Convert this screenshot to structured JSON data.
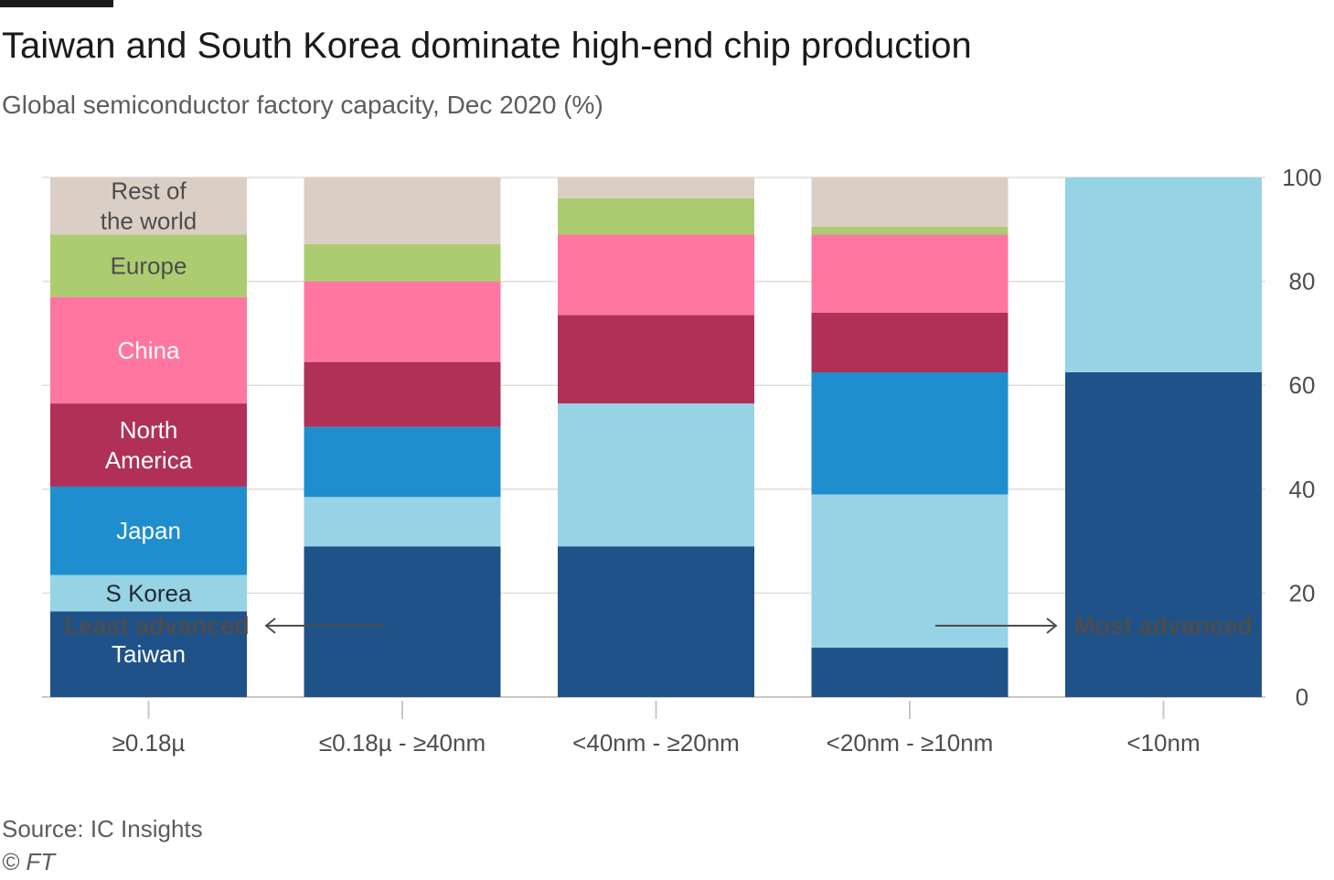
{
  "header": {
    "title": "Taiwan and South Korea dominate high-end chip production",
    "subtitle": "Global semiconductor factory capacity, Dec 2020 (%)"
  },
  "footer": {
    "source": "Source: IC Insights",
    "copyright": "© FT"
  },
  "annotations": {
    "left": "Least advanced",
    "right": "Most advanced"
  },
  "chart_data": {
    "type": "bar",
    "stacked": true,
    "orientation": "vertical",
    "categories": [
      "≥0.18µ",
      "≤0.18µ - ≥40nm",
      "<40nm - ≥20nm",
      "<20nm - ≥10nm",
      "<10nm"
    ],
    "y_axis": {
      "position": "right",
      "ylim": [
        0,
        100
      ],
      "ticks": [
        0,
        20,
        40,
        60,
        80,
        100
      ]
    },
    "grid": true,
    "series": [
      {
        "name": "Taiwan",
        "color": "#1f5289",
        "label_color": "#ffffff",
        "values": [
          16.5,
          29,
          29,
          9.5,
          62.5
        ]
      },
      {
        "name": "S Korea",
        "color": "#96d3e5",
        "label_color": "#262a33",
        "values": [
          7,
          9.5,
          27.5,
          29.5,
          37.5
        ]
      },
      {
        "name": "Japan",
        "color": "#1f8ece",
        "label_color": "#ffffff",
        "values": [
          17,
          13.5,
          0,
          23.5,
          0
        ]
      },
      {
        "name": "North America",
        "label_lines": [
          "North",
          "America"
        ],
        "color": "#b03058",
        "label_color": "#ffffff",
        "values": [
          16,
          12.5,
          17,
          11.5,
          0
        ]
      },
      {
        "name": "China",
        "color": "#ff77a0",
        "label_color": "#ffffff",
        "values": [
          20.5,
          15.5,
          15.5,
          15,
          0
        ]
      },
      {
        "name": "Europe",
        "color": "#adcc72",
        "label_color": "#4d4d4d",
        "values": [
          12,
          7.2,
          7,
          1.5,
          0
        ]
      },
      {
        "name": "Rest of the world",
        "label_lines": [
          "Rest of",
          "the world"
        ],
        "color": "#dbcec5",
        "label_color": "#4d4d4d",
        "values": [
          11,
          12.8,
          4,
          9.5,
          0
        ]
      }
    ]
  }
}
